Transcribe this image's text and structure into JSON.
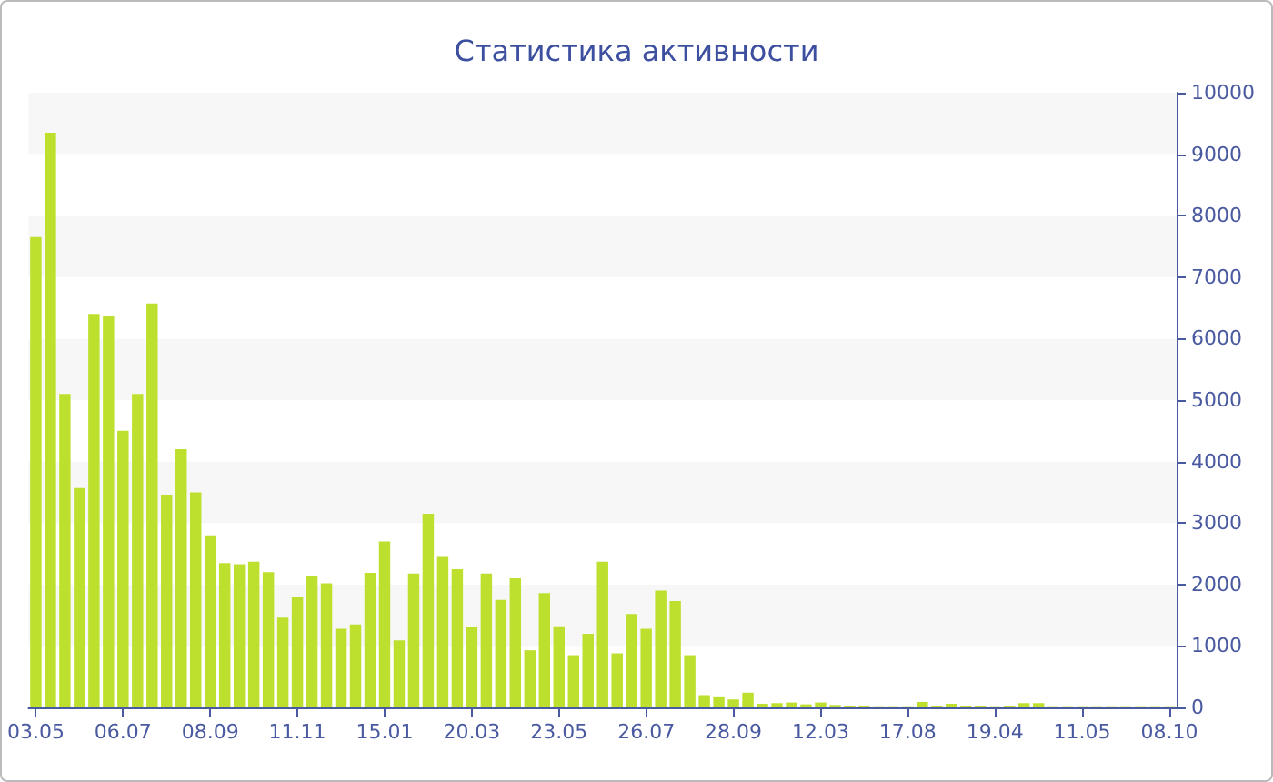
{
  "chart_data": {
    "type": "bar",
    "title": "Статистика активности",
    "categories": [
      "03.05",
      null,
      null,
      null,
      null,
      null,
      "06.07",
      null,
      null,
      null,
      null,
      null,
      "08.09",
      null,
      null,
      null,
      null,
      null,
      "11.11",
      null,
      null,
      null,
      null,
      null,
      "15.01",
      null,
      null,
      null,
      null,
      null,
      "20.03",
      null,
      null,
      null,
      null,
      null,
      "23.05",
      null,
      null,
      null,
      null,
      null,
      "26.07",
      null,
      null,
      null,
      null,
      null,
      "28.09",
      null,
      null,
      null,
      null,
      null,
      "12.03",
      null,
      null,
      null,
      null,
      null,
      "17.08",
      null,
      null,
      null,
      null,
      null,
      "19.04",
      null,
      null,
      null,
      null,
      null,
      "11.05",
      null,
      null,
      null,
      null,
      null,
      "08.10"
    ],
    "values": [
      7650,
      9350,
      5100,
      3570,
      6400,
      6370,
      4500,
      5100,
      6570,
      3460,
      4200,
      3500,
      2800,
      2350,
      2330,
      2370,
      2200,
      1460,
      1800,
      2130,
      2020,
      1280,
      1350,
      2190,
      2700,
      1090,
      2180,
      3150,
      2450,
      2250,
      1300,
      2180,
      1750,
      2100,
      930,
      1860,
      1320,
      850,
      1200,
      2370,
      880,
      1520,
      1280,
      1900,
      1730,
      850,
      200,
      180,
      130,
      240,
      60,
      70,
      80,
      50,
      80,
      40,
      30,
      30,
      20,
      20,
      20,
      90,
      30,
      60,
      30,
      30,
      20,
      30,
      70,
      70,
      20,
      20,
      20,
      20,
      20,
      20,
      20,
      20,
      20
    ],
    "color": "#bde02e",
    "ylim": [
      0,
      10000
    ],
    "yticks": [
      0,
      1000,
      2000,
      3000,
      4000,
      5000,
      6000,
      7000,
      8000,
      9000,
      10000
    ]
  }
}
